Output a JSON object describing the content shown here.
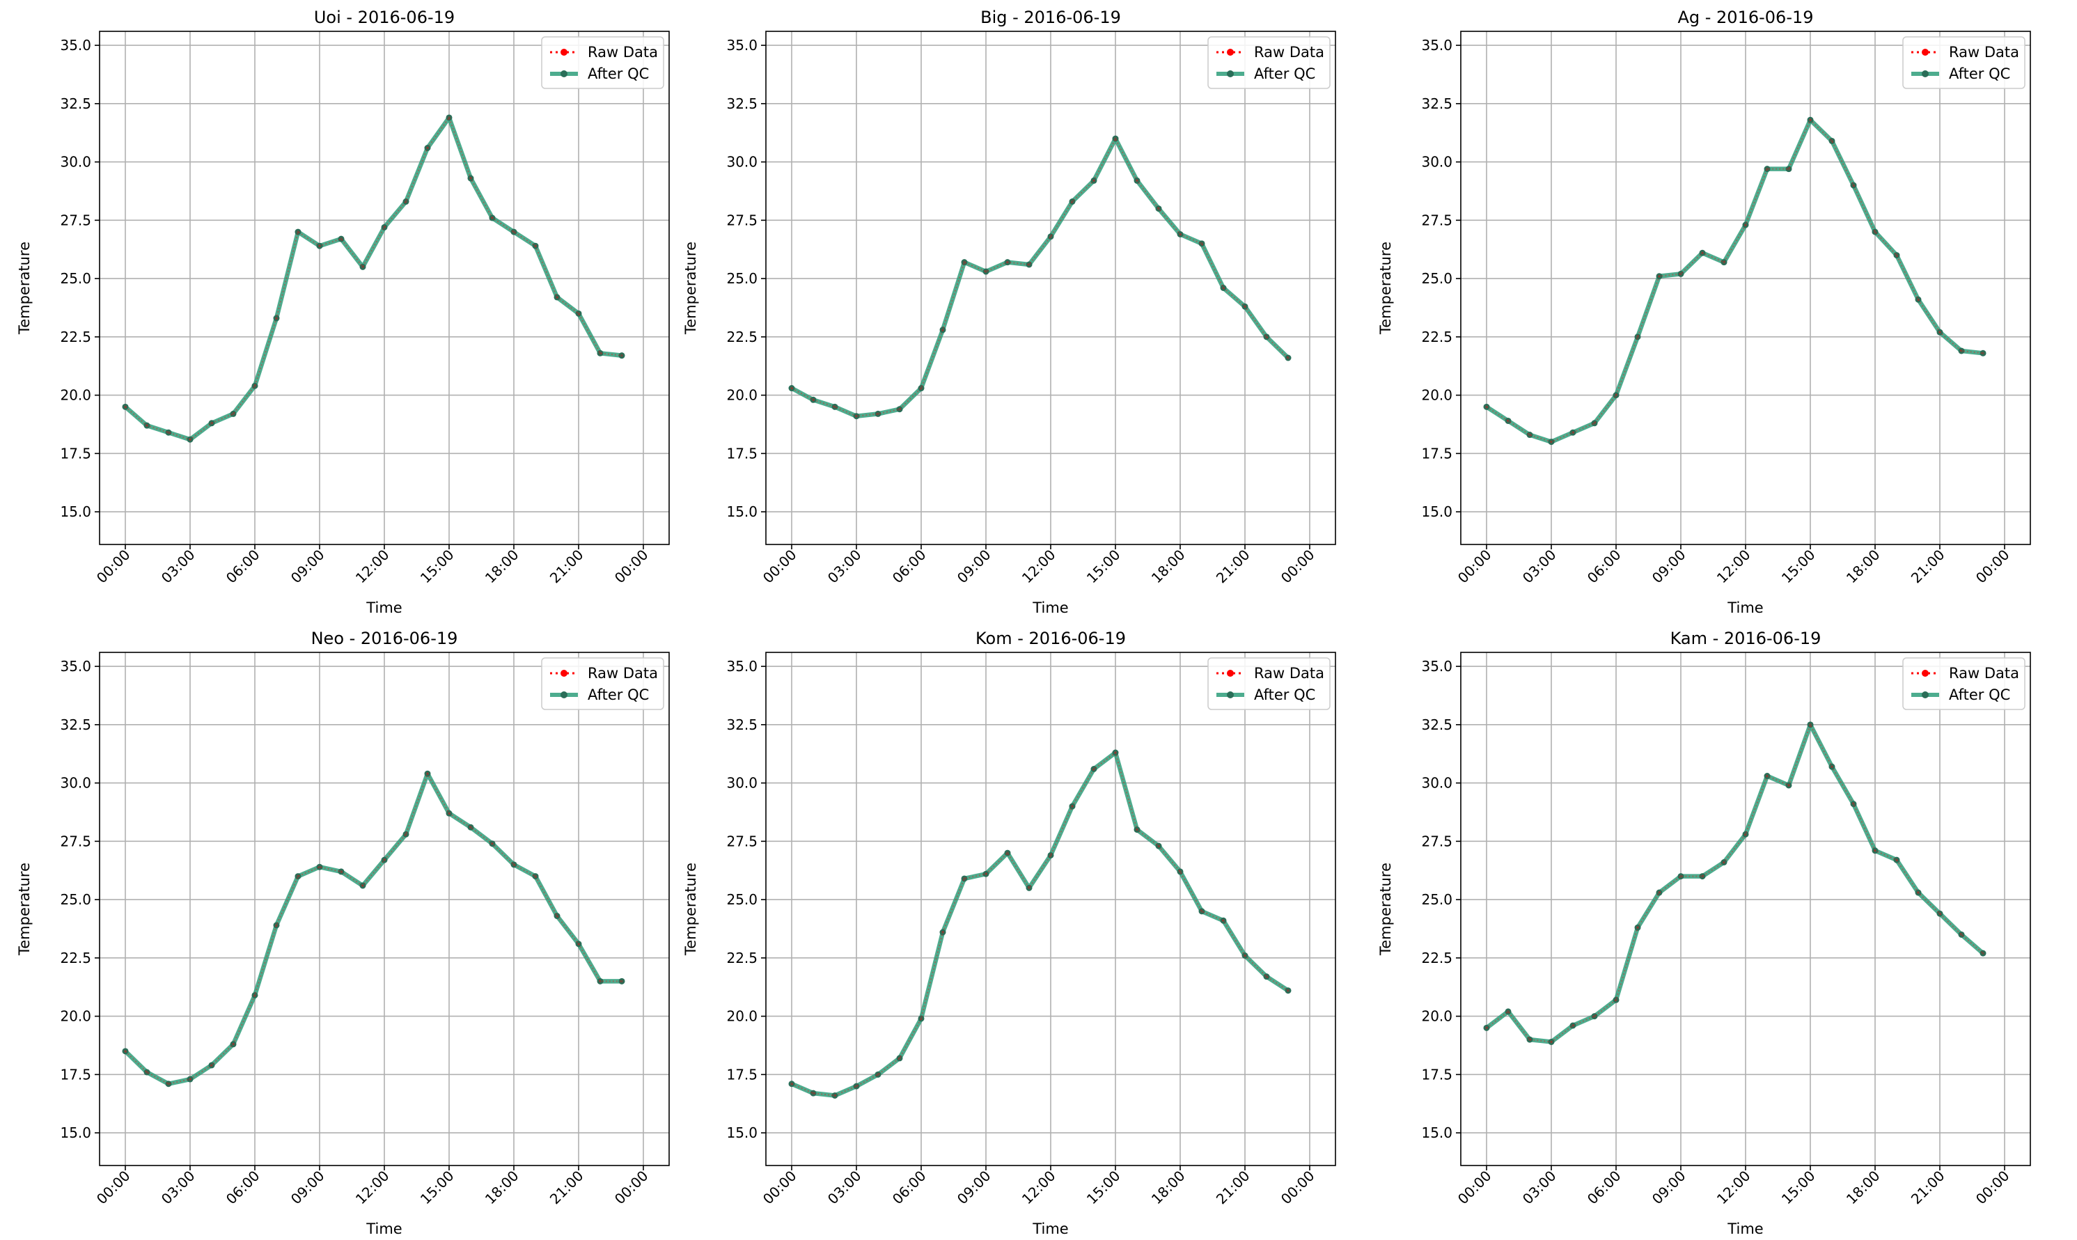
{
  "colors": {
    "raw": "#ff0000",
    "qc": "#2e9e7a",
    "qc_marker": "#2a6e58",
    "grid": "#b0b0b0",
    "axis": "#000000",
    "legend_border": "#cccccc"
  },
  "legend": {
    "raw_label": "Raw Data",
    "qc_label": "After QC"
  },
  "chart_data": [
    {
      "type": "line",
      "title": "Uoi - 2016-06-19",
      "xlabel": "Time",
      "ylabel": "Temperature",
      "x_ticks": [
        "00:00",
        "03:00",
        "06:00",
        "09:00",
        "12:00",
        "15:00",
        "18:00",
        "21:00",
        "00:00"
      ],
      "y_ticks": [
        "15.0",
        "17.5",
        "20.0",
        "22.5",
        "25.0",
        "27.5",
        "30.0",
        "32.5",
        "35.0"
      ],
      "xlim": [
        0,
        24
      ],
      "ylim": [
        13.6,
        35.6
      ],
      "grid": true,
      "legend_position": "top-right",
      "x_hours": [
        0,
        1,
        2,
        3,
        4,
        5,
        6,
        7,
        8,
        9,
        10,
        11,
        12,
        13,
        14,
        15,
        16,
        17,
        18,
        19,
        20,
        21,
        22,
        23
      ],
      "series": [
        {
          "name": "Raw Data",
          "values": [
            19.5,
            18.7,
            18.4,
            18.1,
            18.8,
            19.2,
            20.4,
            23.3,
            27.0,
            26.4,
            26.7,
            25.5,
            27.2,
            28.3,
            30.6,
            31.9,
            29.3,
            27.6,
            27.0,
            26.4,
            24.2,
            23.5,
            21.8,
            21.7
          ]
        },
        {
          "name": "After QC",
          "values": [
            19.5,
            18.7,
            18.4,
            18.1,
            18.8,
            19.2,
            20.4,
            23.3,
            27.0,
            26.4,
            26.7,
            25.5,
            27.2,
            28.3,
            30.6,
            31.9,
            29.3,
            27.6,
            27.0,
            26.4,
            24.2,
            23.5,
            21.8,
            21.7
          ]
        }
      ]
    },
    {
      "type": "line",
      "title": "Big - 2016-06-19",
      "xlabel": "Time",
      "ylabel": "Temperature",
      "x_ticks": [
        "00:00",
        "03:00",
        "06:00",
        "09:00",
        "12:00",
        "15:00",
        "18:00",
        "21:00",
        "00:00"
      ],
      "y_ticks": [
        "15.0",
        "17.5",
        "20.0",
        "22.5",
        "25.0",
        "27.5",
        "30.0",
        "32.5",
        "35.0"
      ],
      "xlim": [
        0,
        24
      ],
      "ylim": [
        13.6,
        35.6
      ],
      "grid": true,
      "legend_position": "top-right",
      "x_hours": [
        0,
        1,
        2,
        3,
        4,
        5,
        6,
        7,
        8,
        9,
        10,
        11,
        12,
        13,
        14,
        15,
        16,
        17,
        18,
        19,
        20,
        21,
        22,
        23
      ],
      "series": [
        {
          "name": "Raw Data",
          "values": [
            20.3,
            19.8,
            19.5,
            19.1,
            19.2,
            19.4,
            20.3,
            22.8,
            25.7,
            25.3,
            25.7,
            25.6,
            26.8,
            28.3,
            29.2,
            31.0,
            29.2,
            28.0,
            26.9,
            26.5,
            24.6,
            23.8,
            22.5,
            21.6
          ]
        },
        {
          "name": "After QC",
          "values": [
            20.3,
            19.8,
            19.5,
            19.1,
            19.2,
            19.4,
            20.3,
            22.8,
            25.7,
            25.3,
            25.7,
            25.6,
            26.8,
            28.3,
            29.2,
            31.0,
            29.2,
            28.0,
            26.9,
            26.5,
            24.6,
            23.8,
            22.5,
            21.6
          ]
        }
      ]
    },
    {
      "type": "line",
      "title": "Ag - 2016-06-19",
      "xlabel": "Time",
      "ylabel": "Temperature",
      "x_ticks": [
        "00:00",
        "03:00",
        "06:00",
        "09:00",
        "12:00",
        "15:00",
        "18:00",
        "21:00",
        "00:00"
      ],
      "y_ticks": [
        "15.0",
        "17.5",
        "20.0",
        "22.5",
        "25.0",
        "27.5",
        "30.0",
        "32.5",
        "35.0"
      ],
      "xlim": [
        0,
        24
      ],
      "ylim": [
        13.6,
        35.6
      ],
      "grid": true,
      "legend_position": "top-right",
      "x_hours": [
        0,
        1,
        2,
        3,
        4,
        5,
        6,
        7,
        8,
        9,
        10,
        11,
        12,
        13,
        14,
        15,
        16,
        17,
        18,
        19,
        20,
        21,
        22,
        23
      ],
      "series": [
        {
          "name": "Raw Data",
          "values": [
            19.5,
            18.9,
            18.3,
            18.0,
            18.4,
            18.8,
            20.0,
            22.5,
            25.1,
            25.2,
            26.1,
            25.7,
            27.3,
            29.7,
            29.7,
            31.8,
            30.9,
            29.0,
            27.0,
            26.0,
            24.1,
            22.7,
            21.9,
            21.8
          ]
        },
        {
          "name": "After QC",
          "values": [
            19.5,
            18.9,
            18.3,
            18.0,
            18.4,
            18.8,
            20.0,
            22.5,
            25.1,
            25.2,
            26.1,
            25.7,
            27.3,
            29.7,
            29.7,
            31.8,
            30.9,
            29.0,
            27.0,
            26.0,
            24.1,
            22.7,
            21.9,
            21.8
          ]
        }
      ]
    },
    {
      "type": "line",
      "title": "Neo - 2016-06-19",
      "xlabel": "Time",
      "ylabel": "Temperature",
      "x_ticks": [
        "00:00",
        "03:00",
        "06:00",
        "09:00",
        "12:00",
        "15:00",
        "18:00",
        "21:00",
        "00:00"
      ],
      "y_ticks": [
        "15.0",
        "17.5",
        "20.0",
        "22.5",
        "25.0",
        "27.5",
        "30.0",
        "32.5",
        "35.0"
      ],
      "xlim": [
        0,
        24
      ],
      "ylim": [
        13.6,
        35.6
      ],
      "grid": true,
      "legend_position": "top-right",
      "x_hours": [
        0,
        1,
        2,
        3,
        4,
        5,
        6,
        7,
        8,
        9,
        10,
        11,
        12,
        13,
        14,
        15,
        16,
        17,
        18,
        19,
        20,
        21,
        22,
        23
      ],
      "series": [
        {
          "name": "Raw Data",
          "values": [
            18.5,
            17.6,
            17.1,
            17.3,
            17.9,
            18.8,
            20.9,
            23.9,
            26.0,
            26.4,
            26.2,
            25.6,
            26.7,
            27.8,
            30.4,
            28.7,
            28.1,
            27.4,
            26.5,
            26.0,
            24.3,
            23.1,
            21.5,
            21.5
          ]
        },
        {
          "name": "After QC",
          "values": [
            18.5,
            17.6,
            17.1,
            17.3,
            17.9,
            18.8,
            20.9,
            23.9,
            26.0,
            26.4,
            26.2,
            25.6,
            26.7,
            27.8,
            30.4,
            28.7,
            28.1,
            27.4,
            26.5,
            26.0,
            24.3,
            23.1,
            21.5,
            21.5
          ]
        }
      ]
    },
    {
      "type": "line",
      "title": "Kom - 2016-06-19",
      "xlabel": "Time",
      "ylabel": "Temperature",
      "x_ticks": [
        "00:00",
        "03:00",
        "06:00",
        "09:00",
        "12:00",
        "15:00",
        "18:00",
        "21:00",
        "00:00"
      ],
      "y_ticks": [
        "15.0",
        "17.5",
        "20.0",
        "22.5",
        "25.0",
        "27.5",
        "30.0",
        "32.5",
        "35.0"
      ],
      "xlim": [
        0,
        24
      ],
      "ylim": [
        13.6,
        35.6
      ],
      "grid": true,
      "legend_position": "top-right",
      "x_hours": [
        0,
        1,
        2,
        3,
        4,
        5,
        6,
        7,
        8,
        9,
        10,
        11,
        12,
        13,
        14,
        15,
        16,
        17,
        18,
        19,
        20,
        21,
        22,
        23
      ],
      "series": [
        {
          "name": "Raw Data",
          "values": [
            17.1,
            16.7,
            16.6,
            17.0,
            17.5,
            18.2,
            19.9,
            23.6,
            25.9,
            26.1,
            27.0,
            25.5,
            26.9,
            29.0,
            30.6,
            31.3,
            28.0,
            27.3,
            26.2,
            24.5,
            24.1,
            22.6,
            21.7,
            21.1
          ]
        },
        {
          "name": "After QC",
          "values": [
            17.1,
            16.7,
            16.6,
            17.0,
            17.5,
            18.2,
            19.9,
            23.6,
            25.9,
            26.1,
            27.0,
            25.5,
            26.9,
            29.0,
            30.6,
            31.3,
            28.0,
            27.3,
            26.2,
            24.5,
            24.1,
            22.6,
            21.7,
            21.1
          ]
        }
      ]
    },
    {
      "type": "line",
      "title": "Kam - 2016-06-19",
      "xlabel": "Time",
      "ylabel": "Temperature",
      "x_ticks": [
        "00:00",
        "03:00",
        "06:00",
        "09:00",
        "12:00",
        "15:00",
        "18:00",
        "21:00",
        "00:00"
      ],
      "y_ticks": [
        "15.0",
        "17.5",
        "20.0",
        "22.5",
        "25.0",
        "27.5",
        "30.0",
        "32.5",
        "35.0"
      ],
      "xlim": [
        0,
        24
      ],
      "ylim": [
        13.6,
        35.6
      ],
      "grid": true,
      "legend_position": "top-right",
      "x_hours": [
        0,
        1,
        2,
        3,
        4,
        5,
        6,
        7,
        8,
        9,
        10,
        11,
        12,
        13,
        14,
        15,
        16,
        17,
        18,
        19,
        20,
        21,
        22,
        23
      ],
      "series": [
        {
          "name": "Raw Data",
          "values": [
            19.5,
            20.2,
            19.0,
            18.9,
            19.6,
            20.0,
            20.7,
            23.8,
            25.3,
            26.0,
            26.0,
            26.6,
            27.8,
            30.3,
            29.9,
            32.5,
            30.7,
            29.1,
            27.1,
            26.7,
            25.3,
            24.4,
            23.5,
            22.7
          ]
        },
        {
          "name": "After QC",
          "values": [
            19.5,
            20.2,
            19.0,
            18.9,
            19.6,
            20.0,
            20.7,
            23.8,
            25.3,
            26.0,
            26.0,
            26.6,
            27.8,
            30.3,
            29.9,
            32.5,
            30.7,
            29.1,
            27.1,
            26.7,
            25.3,
            24.4,
            23.5,
            22.7
          ]
        }
      ]
    }
  ]
}
